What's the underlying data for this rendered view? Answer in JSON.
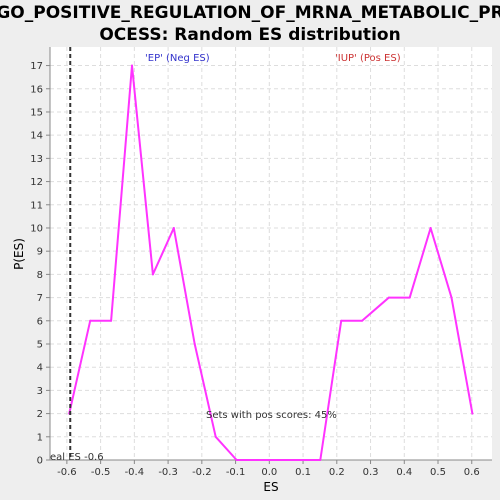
{
  "chart_data": {
    "type": "line",
    "title_line1": "GO_POSITIVE_REGULATION_OF_MRNA_METABOLIC_PR",
    "title_line2": "OCESS: Random ES distribution",
    "xlabel": "ES",
    "ylabel": "P(ES)",
    "xlim": [
      -0.65,
      0.66
    ],
    "ylim": [
      0,
      17.8
    ],
    "x_ticks": [
      -0.6,
      -0.5,
      -0.4,
      -0.3,
      -0.2,
      -0.1,
      0.0,
      0.1,
      0.2,
      0.3,
      0.4,
      0.5,
      0.6
    ],
    "x_tick_labels": [
      "-0.6",
      "-0.5",
      "-0.4",
      "-0.3",
      "-0.2",
      "-0.1",
      "0.0",
      "0.1",
      "0.2",
      "0.3",
      "0.4",
      "0.5",
      "0.6"
    ],
    "y_ticks": [
      0,
      1,
      2,
      3,
      4,
      5,
      6,
      7,
      8,
      9,
      10,
      11,
      12,
      13,
      14,
      15,
      16,
      17
    ],
    "series": [
      {
        "name": "Random ES distribution",
        "color": "#ff33ff",
        "x": [
          -0.593,
          -0.531,
          -0.469,
          -0.407,
          -0.345,
          -0.283,
          -0.221,
          -0.159,
          -0.097,
          -0.035,
          0.027,
          0.089,
          0.151,
          0.213,
          0.275,
          0.354,
          0.416,
          0.478,
          0.54,
          0.602
        ],
        "y": [
          2,
          6,
          6,
          17,
          8,
          10,
          5,
          1,
          0,
          0,
          0,
          0,
          0,
          6,
          6,
          7,
          7,
          10,
          7,
          2
        ]
      }
    ],
    "real_es": {
      "value": -0.59,
      "label": "eal ES -0.6",
      "color": "#333333"
    },
    "legend": {
      "neg_label": "'EP' (Neg ES)",
      "neg_color": "#3333cc",
      "pos_label": "'IUP' (Pos ES)",
      "pos_color": "#cc3333"
    },
    "annotation": "Sets with pos scores: 45%",
    "grid": true,
    "plot_background": "#ffffff",
    "grid_color": "#dddddd"
  }
}
